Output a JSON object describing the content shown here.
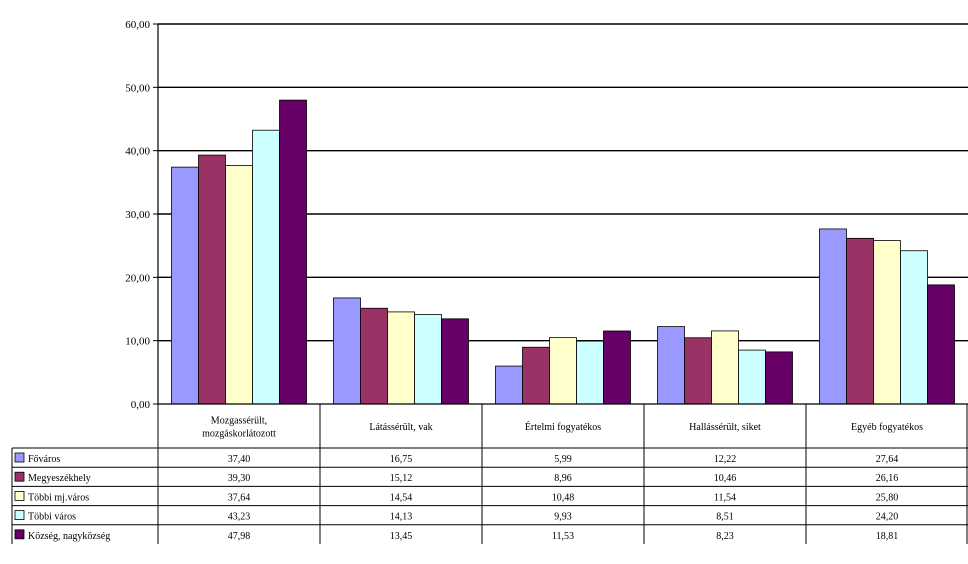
{
  "chart_data": {
    "type": "bar",
    "categories": [
      [
        "Mozgassérült,",
        "mozgáskorlátozott"
      ],
      [
        "Látássérült, vak"
      ],
      [
        "Értelmi fogyatékos"
      ],
      [
        "Hallássérült, siket"
      ],
      [
        "Egyéb fogyatékos"
      ]
    ],
    "series": [
      {
        "name": "Főváros",
        "values": [
          37.4,
          16.75,
          5.99,
          12.22,
          27.64
        ],
        "labels": [
          "37,40",
          "16,75",
          "5,99",
          "12,22",
          "27,64"
        ],
        "color": "#9999ff"
      },
      {
        "name": "Megyeszékhely",
        "values": [
          39.3,
          15.12,
          8.96,
          10.46,
          26.16
        ],
        "labels": [
          "39,30",
          "15,12",
          "8,96",
          "10,46",
          "26,16"
        ],
        "color": "#993366"
      },
      {
        "name": "Többi mj.város",
        "values": [
          37.64,
          14.54,
          10.48,
          11.54,
          25.8
        ],
        "labels": [
          "37,64",
          "14,54",
          "10,48",
          "11,54",
          "25,80"
        ],
        "color": "#ffffcc"
      },
      {
        "name": "Többi város",
        "values": [
          43.23,
          14.13,
          9.93,
          8.51,
          24.2
        ],
        "labels": [
          "43,23",
          "14,13",
          "9,93",
          "8,51",
          "24,20"
        ],
        "color": "#ccffff"
      },
      {
        "name": "Község, nagyközség",
        "values": [
          47.98,
          13.45,
          11.53,
          8.23,
          18.81
        ],
        "labels": [
          "47,98",
          "13,45",
          "11,53",
          "8,23",
          "18,81"
        ],
        "color": "#660066"
      }
    ],
    "yticks": [
      "0,00",
      "10,00",
      "20,00",
      "30,00",
      "40,00",
      "50,00",
      "60,00"
    ],
    "ylim": [
      0,
      60
    ],
    "grid": true,
    "legend": "data table, left"
  }
}
